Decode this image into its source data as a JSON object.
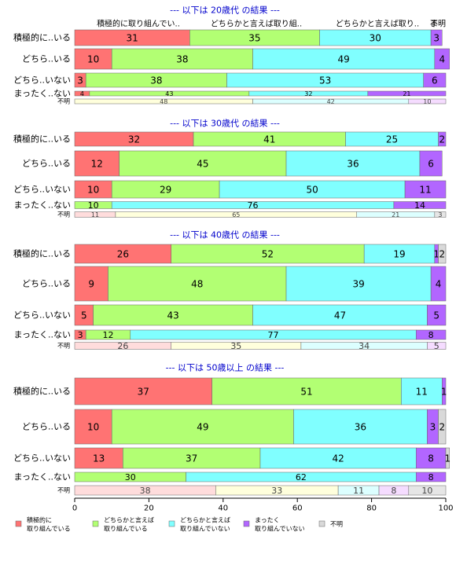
{
  "colors": {
    "積極的に取り組んでいる": "#FF7373",
    "どちらかと言えば取り組んでいる": "#B2FF73",
    "どちらかと言えば取り組んでいない": "#80FFFF",
    "まったく取り組んでいない": "#B266FF",
    "不明": "#D9D9D9",
    "faint_積極的に取り組んでいる": "#FFDCDC",
    "faint_どちらかと言えば取り組んでいる": "#FFFFDC",
    "faint_どちらかと言えば取り組んでいない": "#DCFFFF",
    "faint_まったく取り組んでいない": "#F5DCFF",
    "faint_不明": "#E6E6E6",
    "title": "#0000CC"
  },
  "chart_data": {
    "type": "bar",
    "orientation": "horizontal-stacked",
    "xlim": [
      0,
      100
    ],
    "xticks": [
      0,
      20,
      40,
      60,
      80,
      100
    ],
    "column_headers": [
      "積極的に取り組んでい..",
      "どちらかと言えば取り組..",
      "どちらかと言えば取り..",
      "ま",
      "不明"
    ],
    "legend": [
      {
        "key": "積極的に取り組んでいる",
        "label": [
          "積極的に",
          "取り組んでいる"
        ]
      },
      {
        "key": "どちらかと言えば取り組んでいる",
        "label": [
          "どちらかと言えば",
          "取り組んでいる"
        ]
      },
      {
        "key": "どちらかと言えば取り組んでいない",
        "label": [
          "どちらかと言えば",
          "取り組んでいない"
        ]
      },
      {
        "key": "まったく取り組んでいない",
        "label": [
          "まったく",
          "取り組んでいない"
        ]
      },
      {
        "key": "不明",
        "label": [
          "不明"
        ]
      }
    ],
    "panels": [
      {
        "title": "--- 以下は 20歳代 の結果 ---",
        "rows": [
          {
            "label": "積極的に..いる",
            "values": [
              31,
              35,
              30,
              3,
              0
            ],
            "shown": [
              "31",
              "35",
              "30",
              "3",
              ""
            ]
          },
          {
            "label": "どちら..いる",
            "values": [
              10,
              38,
              49,
              4,
              0
            ],
            "shown": [
              "10",
              "38",
              "49",
              "4",
              ""
            ]
          },
          {
            "label": "どちら..いない",
            "values": [
              3,
              38,
              53,
              6,
              0
            ],
            "shown": [
              "3",
              "38",
              "53",
              "6",
              ""
            ]
          },
          {
            "label": "まったく..ない",
            "values": [
              4,
              43,
              32,
              21,
              0
            ],
            "shown": [
              "4",
              "43",
              "32",
              "21",
              ""
            ]
          },
          {
            "label": "不明",
            "values": [
              0,
              48,
              42,
              10,
              0
            ],
            "shown": [
              "",
              "48",
              "42",
              "10",
              ""
            ],
            "faint": true
          }
        ]
      },
      {
        "title": "--- 以下は 30歳代 の結果 ---",
        "rows": [
          {
            "label": "積極的に..いる",
            "values": [
              32,
              41,
              25,
              2,
              0
            ],
            "shown": [
              "32",
              "41",
              "25",
              "2",
              ""
            ]
          },
          {
            "label": "どちら..いる",
            "values": [
              12,
              45,
              36,
              6,
              0
            ],
            "shown": [
              "12",
              "45",
              "36",
              "6",
              ""
            ]
          },
          {
            "label": "どちら..いない",
            "values": [
              10,
              29,
              50,
              11,
              0
            ],
            "shown": [
              "10",
              "29",
              "50",
              "11",
              ""
            ]
          },
          {
            "label": "まったく..ない",
            "values": [
              0,
              10,
              76,
              14,
              0
            ],
            "shown": [
              "",
              "10",
              "76",
              "14",
              ""
            ]
          },
          {
            "label": "不明",
            "values": [
              11,
              65,
              21,
              0,
              3
            ],
            "shown": [
              "11",
              "65",
              "21",
              "",
              "3"
            ],
            "faint": true
          }
        ]
      },
      {
        "title": "--- 以下は 40歳代 の結果 ---",
        "rows": [
          {
            "label": "積極的に..いる",
            "values": [
              26,
              52,
              19,
              1,
              2
            ],
            "shown": [
              "26",
              "52",
              "19",
              "1",
              "2"
            ]
          },
          {
            "label": "どちら..いる",
            "values": [
              9,
              48,
              39,
              4,
              0
            ],
            "shown": [
              "9",
              "48",
              "39",
              "4",
              ""
            ]
          },
          {
            "label": "どちら..いない",
            "values": [
              5,
              43,
              47,
              5,
              0
            ],
            "shown": [
              "5",
              "43",
              "47",
              "5",
              ""
            ]
          },
          {
            "label": "まったく..ない",
            "values": [
              3,
              12,
              77,
              8,
              0
            ],
            "shown": [
              "3",
              "12",
              "77",
              "8",
              ""
            ]
          },
          {
            "label": "不明",
            "values": [
              26,
              35,
              34,
              5,
              0
            ],
            "shown": [
              "26",
              "35",
              "34",
              "5",
              ""
            ],
            "faint": true
          }
        ]
      },
      {
        "title": "--- 以下は 50歳以上 の結果 ---",
        "rows": [
          {
            "label": "積極的に..いる",
            "values": [
              37,
              51,
              11,
              1,
              0
            ],
            "shown": [
              "37",
              "51",
              "11",
              "1",
              ""
            ]
          },
          {
            "label": "どちら..いる",
            "values": [
              10,
              49,
              36,
              3,
              2
            ],
            "shown": [
              "10",
              "49",
              "36",
              "3",
              "2"
            ]
          },
          {
            "label": "どちら..いない",
            "values": [
              13,
              37,
              42,
              8,
              1
            ],
            "shown": [
              "13",
              "37",
              "42",
              "8",
              "1"
            ]
          },
          {
            "label": "まったく..ない",
            "values": [
              0,
              30,
              62,
              8,
              0
            ],
            "shown": [
              "",
              "30",
              "62",
              "8",
              ""
            ]
          },
          {
            "label": "不明",
            "values": [
              38,
              33,
              11,
              8,
              10
            ],
            "shown": [
              "38",
              "33",
              "11",
              "8",
              "10"
            ],
            "faint": true
          }
        ]
      }
    ]
  }
}
